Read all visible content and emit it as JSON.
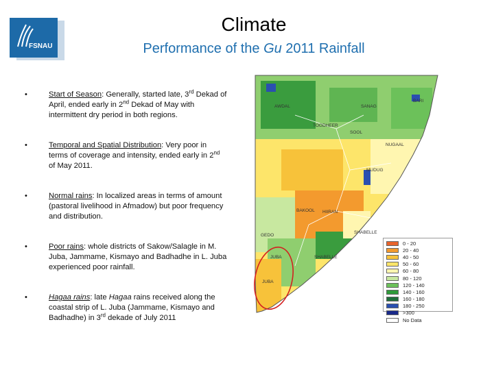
{
  "header": {
    "title": "Climate",
    "subtitle_prefix": "Performance of the ",
    "subtitle_italic": "Gu",
    "subtitle_suffix": " 2011 Rainfall"
  },
  "logo": {
    "text": "FSNAU"
  },
  "bullets": [
    {
      "marker": "•",
      "term": "Start of Season",
      "text_a": ": Generally, started late, 3",
      "sup_a": "rd",
      "text_b": " Dekad of April, ended early in 2",
      "sup_b": "nd",
      "text_c": " Dekad of May with intermittent dry period in both regions."
    },
    {
      "marker": "•",
      "term": "Temporal and Spatial Distribution",
      "text_a": ": Very poor in terms of coverage and intensity, ended early in 2",
      "sup_a": "nd",
      "text_b": " of May 2011."
    },
    {
      "marker": "•",
      "term": "Normal rains",
      "text_a": ": In localized areas in terms of amount (pastoral livelihood in Afmadow) but poor frequency and distribution."
    },
    {
      "marker": "•",
      "term": "Poor rains",
      "text_a": ": whole districts of Sakow/Salagle in M. Juba, Jammame, Kismayo and Badhadhe in L. Juba experienced poor rainfall."
    },
    {
      "marker": "•",
      "term": "Hagaa rains",
      "text_a": ": late ",
      "italic": "Hagaa",
      "text_b": " rains received  along the coastal strip of L. Juba (Jammame, Kismayo and Badhadhe) in 3",
      "sup_b": "rd",
      "text_c": "  dekade of July 2011"
    }
  ],
  "map": {
    "region_labels": [
      "AWDAL",
      "BARI",
      "SANAG",
      "TOGDHEER",
      "SOOL",
      "NUGAAL",
      "MUDUG",
      "BAKOOL",
      "HIIRAN",
      "GEDO",
      "SHABELLE",
      "SHABELLE",
      "JUBA",
      "JUBA"
    ],
    "legend": [
      {
        "label": "0 - 20",
        "color": "#e8642c"
      },
      {
        "label": "20 - 40",
        "color": "#f39a2e"
      },
      {
        "label": "40 - 50",
        "color": "#f7c23a"
      },
      {
        "label": "50 - 60",
        "color": "#fde56a"
      },
      {
        "label": "60 - 80",
        "color": "#fff6b0"
      },
      {
        "label": "80 - 120",
        "color": "#c8e8a0"
      },
      {
        "label": "120 - 140",
        "color": "#6cc15a"
      },
      {
        "label": "140 - 160",
        "color": "#2f9a3a"
      },
      {
        "label": "160 - 180",
        "color": "#1f6e3a"
      },
      {
        "label": "180 - 250",
        "color": "#2a4fb0"
      },
      {
        "label": ">300",
        "color": "#1a2a8a"
      },
      {
        "label": "No Data",
        "color": "#ffffff"
      }
    ]
  }
}
